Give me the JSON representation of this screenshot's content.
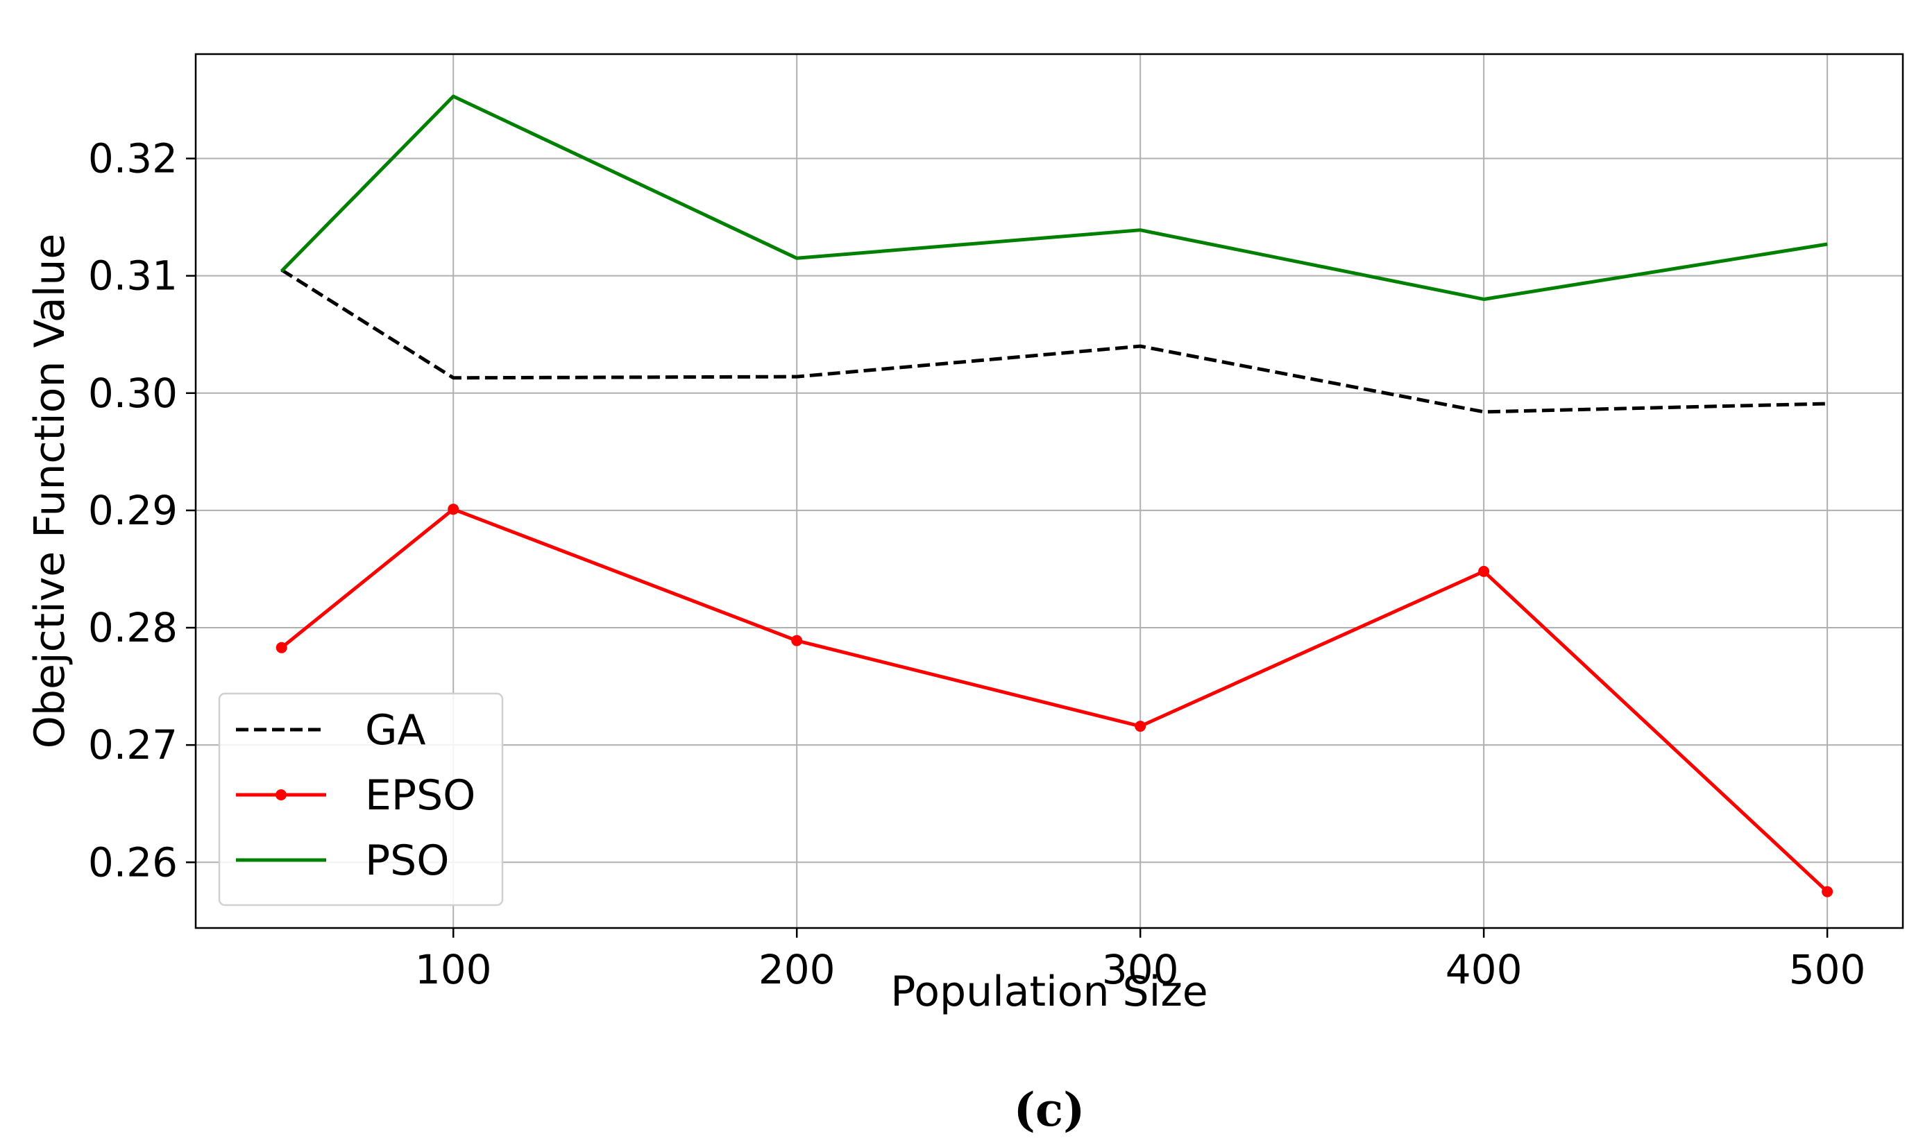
{
  "caption": "(c)",
  "chart_data": {
    "type": "line",
    "title": "",
    "xlabel": "Population Size",
    "ylabel": "Obejctive Function Value",
    "x": [
      50,
      100,
      200,
      300,
      400,
      500
    ],
    "xlim": [
      25,
      522
    ],
    "ylim": [
      0.2544,
      0.3289
    ],
    "xticks": [
      100,
      200,
      300,
      400,
      500
    ],
    "xtick_labels": [
      "100",
      "200",
      "300",
      "400",
      "500"
    ],
    "yticks": [
      0.26,
      0.27,
      0.28,
      0.29,
      0.3,
      0.31,
      0.32
    ],
    "ytick_labels": [
      "0.26",
      "0.27",
      "0.28",
      "0.29",
      "0.30",
      "0.31",
      "0.32"
    ],
    "grid": true,
    "legend_position": "lower-left",
    "series": [
      {
        "name": "GA",
        "color": "#000000",
        "style": "dashed",
        "marker": "none",
        "values": [
          0.3105,
          0.3013,
          0.3014,
          0.304,
          0.2984,
          0.2991
        ]
      },
      {
        "name": "EPSO",
        "color": "#ff0000",
        "style": "solid",
        "marker": "dot",
        "values": [
          0.2783,
          0.2901,
          0.2789,
          0.2716,
          0.2848,
          0.2575
        ]
      },
      {
        "name": "PSO",
        "color": "#008000",
        "style": "solid",
        "marker": "none",
        "values": [
          0.3104,
          0.3253,
          0.3115,
          0.3139,
          0.308,
          0.3127
        ]
      }
    ]
  }
}
